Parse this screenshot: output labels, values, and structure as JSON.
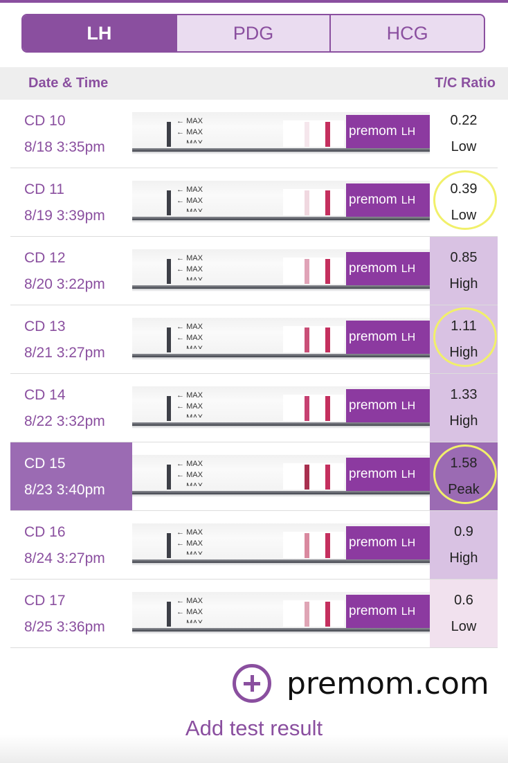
{
  "tabs": [
    {
      "label": "LH",
      "active": true
    },
    {
      "label": "PDG",
      "active": false
    },
    {
      "label": "HCG",
      "active": false
    }
  ],
  "header": {
    "date_time": "Date & Time",
    "ratio": "T/C Ratio"
  },
  "strip_text": {
    "max": "MAX",
    "brand": "premom",
    "lh": "LH"
  },
  "rows": [
    {
      "cd": "CD 10",
      "datetime": "8/18  3:35pm",
      "ratio": "0.22",
      "status": "Low",
      "level": "low",
      "circled": false,
      "selected": false,
      "test_line_color": "#f5e6ec"
    },
    {
      "cd": "CD 11",
      "datetime": "8/19  3:39pm",
      "ratio": "0.39",
      "status": "Low",
      "level": "low",
      "circled": true,
      "selected": false,
      "test_line_color": "#f0d8e0"
    },
    {
      "cd": "CD 12",
      "datetime": "8/20  3:22pm",
      "ratio": "0.85",
      "status": "High",
      "level": "high",
      "circled": false,
      "selected": false,
      "test_line_color": "#e0a3b7"
    },
    {
      "cd": "CD 13",
      "datetime": "8/21  3:27pm",
      "ratio": "1.11",
      "status": "High",
      "level": "high",
      "circled": true,
      "selected": false,
      "test_line_color": "#c94f77"
    },
    {
      "cd": "CD 14",
      "datetime": "8/22  3:32pm",
      "ratio": "1.33",
      "status": "High",
      "level": "high",
      "circled": false,
      "selected": false,
      "test_line_color": "#c64171"
    },
    {
      "cd": "CD 15",
      "datetime": "8/23  3:40pm",
      "ratio": "1.58",
      "status": "Peak",
      "level": "peak",
      "circled": true,
      "selected": true,
      "test_line_color": "#a8304f"
    },
    {
      "cd": "CD 16",
      "datetime": "8/24  3:27pm",
      "ratio": "0.9",
      "status": "High",
      "level": "high",
      "circled": false,
      "selected": false,
      "test_line_color": "#d9899f"
    },
    {
      "cd": "CD 17",
      "datetime": "8/25  3:36pm",
      "ratio": "0.6",
      "status": "Low",
      "level": "low2",
      "circled": false,
      "selected": false,
      "test_line_color": "#dfa5b5"
    }
  ],
  "footer": {
    "add_label": "Add test result",
    "watermark": "premom.com"
  },
  "colors": {
    "accent": "#8a4f9f",
    "control_line": "#c42f5e",
    "circle": "#f1f06a"
  }
}
